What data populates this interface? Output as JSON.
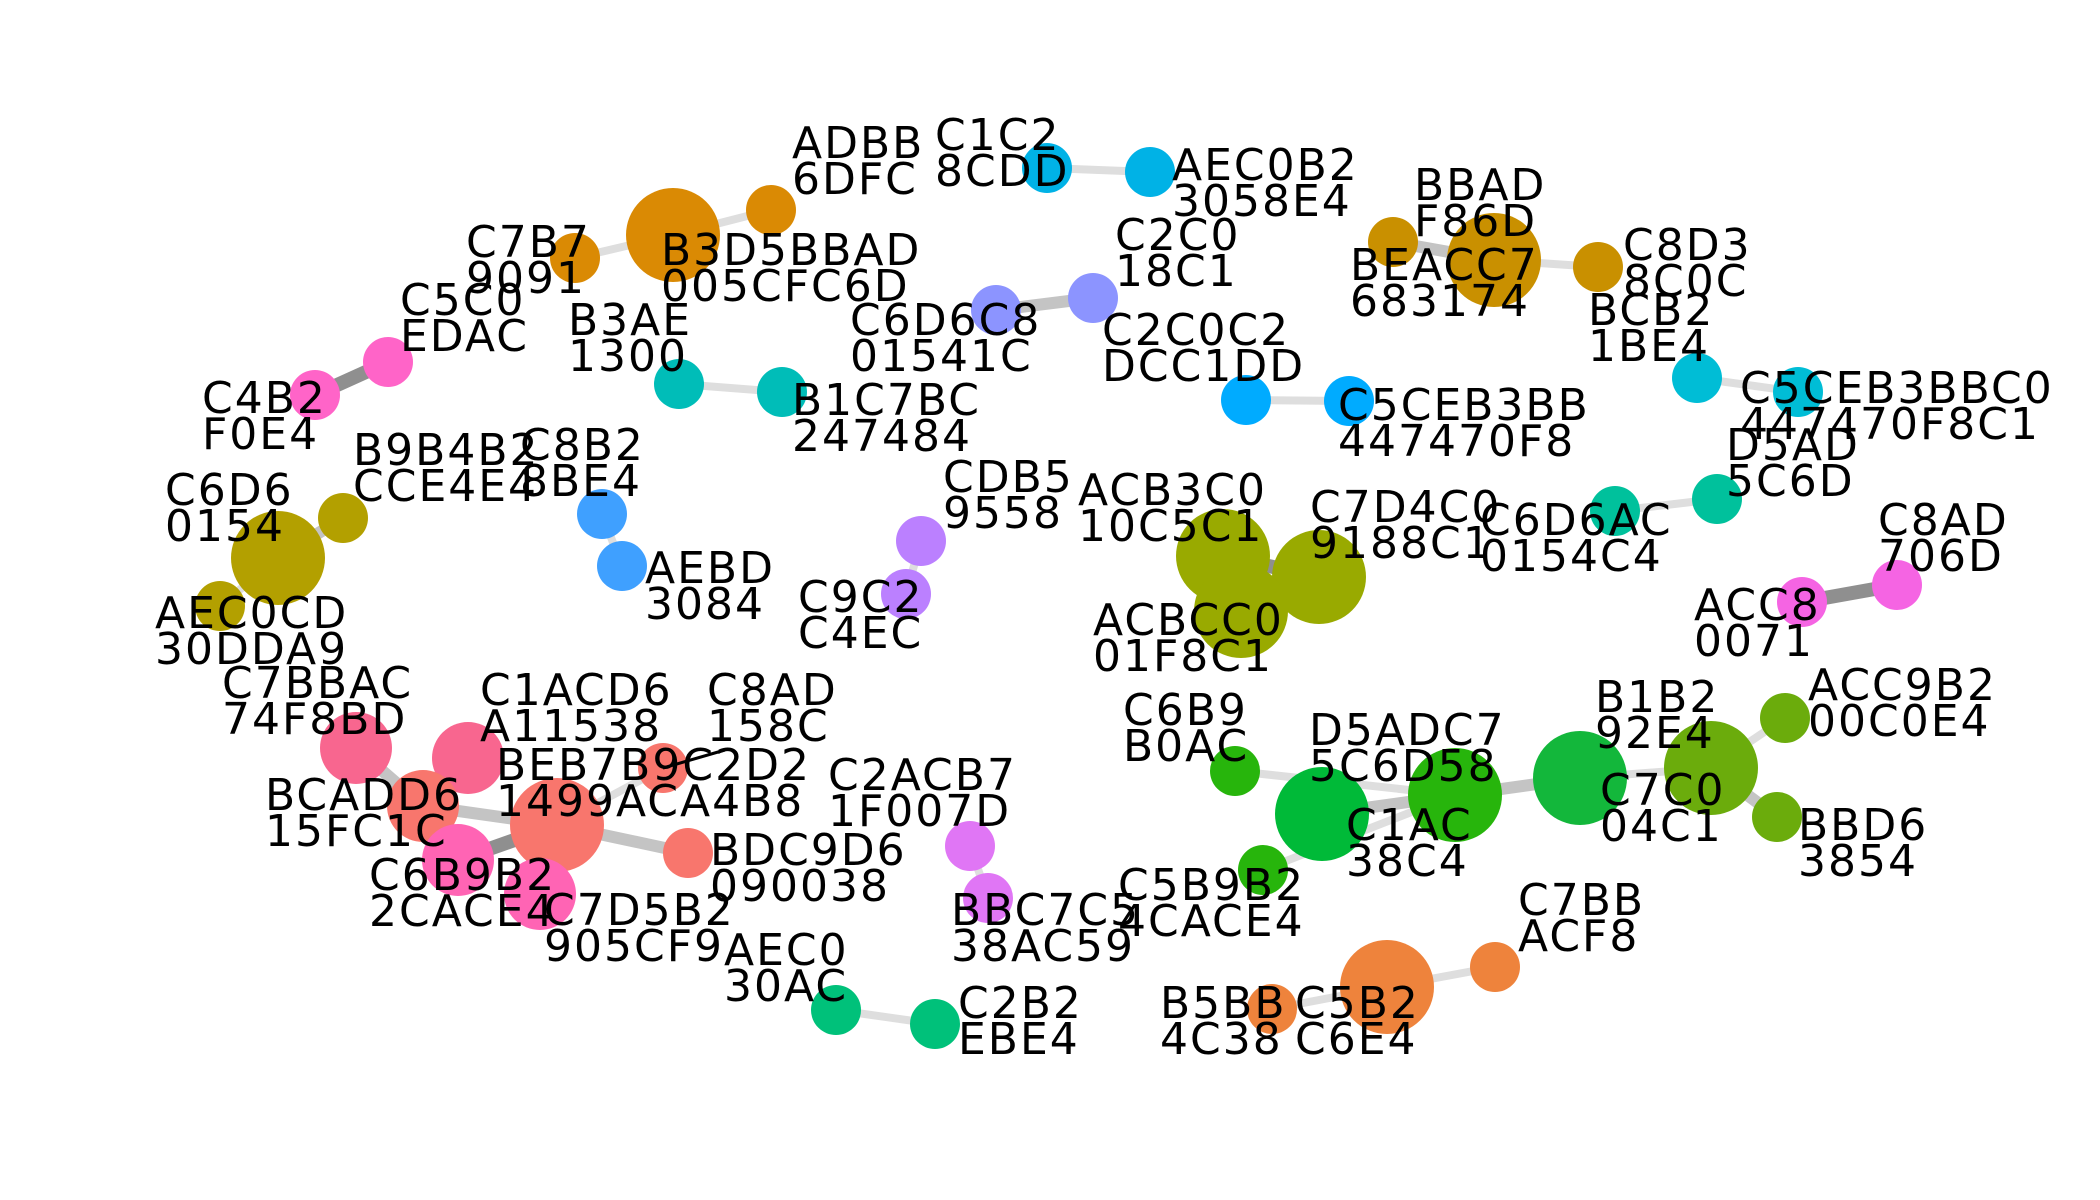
{
  "graph": {
    "type": "network",
    "nodes": [
      {
        "id": "n1",
        "label": "ADBB 6DFC",
        "color": "#DA8A04",
        "size": "small"
      },
      {
        "id": "n2",
        "label": "B3D5BBAD 005CFC6D",
        "color": "#DA8A04",
        "size": "large"
      },
      {
        "id": "n3",
        "label": "C7B7 9091",
        "color": "#DA8A04",
        "size": "small"
      },
      {
        "id": "n4",
        "label": "C5C0 EDAC",
        "color": "#FF64C8",
        "size": "small"
      },
      {
        "id": "n5",
        "label": "C4B2 F0E4",
        "color": "#FF64C8",
        "size": "small"
      },
      {
        "id": "n6",
        "label": "C1C2 8CDD",
        "color": "#00B2E6",
        "size": "small"
      },
      {
        "id": "n7",
        "label": "AEC0B2 3058E4",
        "color": "#00B2E6",
        "size": "small"
      },
      {
        "id": "n8",
        "label": "B3AE 1300",
        "color": "#00BDB8",
        "size": "small"
      },
      {
        "id": "n9",
        "label": "B1C7BC 247484",
        "color": "#00BDB8",
        "size": "small"
      },
      {
        "id": "n10",
        "label": "C6D6C8 01541C",
        "color": "#8C94FF",
        "size": "small"
      },
      {
        "id": "n11",
        "label": "C2C0 18C1",
        "color": "#8C94FF",
        "size": "small"
      },
      {
        "id": "n12",
        "label": "C2C0C2 DCC1DD",
        "color": "#00ABFF",
        "size": "small"
      },
      {
        "id": "n13",
        "label": "C5CEB3BB 447470F8",
        "color": "#00ABFF",
        "size": "small"
      },
      {
        "id": "n14",
        "label": "BBAD F86D",
        "color": "#C99000",
        "size": "small"
      },
      {
        "id": "n15",
        "label": "BEACC7 683174",
        "color": "#C99000",
        "size": "large"
      },
      {
        "id": "n16",
        "label": "C8D3 8C0C",
        "color": "#C99000",
        "size": "small"
      },
      {
        "id": "n17",
        "label": "BCB2 1BE4",
        "color": "#00BDD6",
        "size": "small"
      },
      {
        "id": "n18",
        "label": "C5CEB3BBC0 447470F8C1",
        "color": "#00BDD6",
        "size": "small"
      },
      {
        "id": "n19",
        "label": "C6D6 0154",
        "color": "#B3A000",
        "size": "large"
      },
      {
        "id": "n20",
        "label": "B9B4B2 CCE4E4",
        "color": "#B3A000",
        "size": "small"
      },
      {
        "id": "n21",
        "label": "AEC0CD 30DDA9",
        "color": "#B3A000",
        "size": "small"
      },
      {
        "id": "n22",
        "label": "C8B2 8BE4",
        "color": "#3FA0FF",
        "size": "small"
      },
      {
        "id": "n23",
        "label": "AEBD 3084",
        "color": "#3FA0FF",
        "size": "small"
      },
      {
        "id": "n24",
        "label": "CDB5 9558",
        "color": "#BB80FF",
        "size": "small"
      },
      {
        "id": "n25",
        "label": "C9C2 C4EC",
        "color": "#BB80FF",
        "size": "small"
      },
      {
        "id": "n26",
        "label": "ACB3C0 10C5C1",
        "color": "#99AA00",
        "size": "large"
      },
      {
        "id": "n27",
        "label": "C7D4C0 9188C1",
        "color": "#99AA00",
        "size": "large"
      },
      {
        "id": "n28",
        "label": "ACBCC0 01F8C1",
        "color": "#99AA00",
        "size": "large"
      },
      {
        "id": "n29",
        "label": "D5AD 5C6D",
        "color": "#00C19C",
        "size": "small"
      },
      {
        "id": "n30",
        "label": "C6D6AC 0154C4",
        "color": "#00C19C",
        "size": "small"
      },
      {
        "id": "n31",
        "label": "C8AD 706D",
        "color": "#F564E3",
        "size": "small"
      },
      {
        "id": "n32",
        "label": "ACC8 0071",
        "color": "#F564E3",
        "size": "small"
      },
      {
        "id": "n33",
        "label": "C7BBAC 74F8BD",
        "color": "#F8668F",
        "size": "medium"
      },
      {
        "id": "n34",
        "label": "C1ACD6 A11538",
        "color": "#F8668F",
        "size": "medium"
      },
      {
        "id": "n35",
        "label": "C8AD 158C",
        "color": "#F8766D",
        "size": "small"
      },
      {
        "id": "n36",
        "label": "BEB7B9C2D2 1499ACA4B8",
        "color": "#F8766D",
        "size": "large"
      },
      {
        "id": "n37",
        "label": "BCADD6 15FC1C",
        "color": "#F8766D",
        "size": "medium"
      },
      {
        "id": "n38",
        "label": "BDC9D6 090038",
        "color": "#F8766D",
        "size": "small"
      },
      {
        "id": "n39",
        "label": "C6B9B2 2CACE4",
        "color": "#FF64B4",
        "size": "medium"
      },
      {
        "id": "n40",
        "label": "C7D5B2 905CF9",
        "color": "#FF64B4",
        "size": "medium"
      },
      {
        "id": "n41",
        "label": "C2ACB7 1F007D",
        "color": "#E076F5",
        "size": "small"
      },
      {
        "id": "n42",
        "label": "BBC7C5 38AC59",
        "color": "#E076F5",
        "size": "small"
      },
      {
        "id": "n43",
        "label": "AEC0 30AC",
        "color": "#00C17A",
        "size": "small"
      },
      {
        "id": "n44",
        "label": "C2B2 EBE4",
        "color": "#00C17A",
        "size": "small"
      },
      {
        "id": "n45",
        "label": "C6B9 B0AC",
        "color": "#27B50C",
        "size": "small"
      },
      {
        "id": "n46",
        "label": "D5ADC7 5C6D58",
        "color": "#00BA38",
        "size": "large"
      },
      {
        "id": "n47",
        "label": "C1AC 38C4",
        "color": "#27B50C",
        "size": "large"
      },
      {
        "id": "n48",
        "label": "C5B9B2 4CACE4",
        "color": "#27B50C",
        "size": "small"
      },
      {
        "id": "n49",
        "label": "B1B2 92E4",
        "color": "#13B73B",
        "size": "large"
      },
      {
        "id": "n50",
        "label": "C7C0 04C1",
        "color": "#6BAC0C",
        "size": "large"
      },
      {
        "id": "n51",
        "label": "ACC9B2 00C0E4",
        "color": "#6BAC0C",
        "size": "small"
      },
      {
        "id": "n52",
        "label": "BBD6 3854",
        "color": "#6BAC0C",
        "size": "small"
      },
      {
        "id": "n53",
        "label": "C7BB ACF8",
        "color": "#EE833C",
        "size": "small"
      },
      {
        "id": "n54",
        "label": "C5B2 C6E4",
        "color": "#EE833C",
        "size": "large"
      },
      {
        "id": "n55",
        "label": "B5BB 4C38",
        "color": "#EE833C",
        "size": "small"
      }
    ],
    "edges": [
      {
        "source": "n2",
        "target": "n1",
        "weight": "light"
      },
      {
        "source": "n3",
        "target": "n2",
        "weight": "light"
      },
      {
        "source": "n5",
        "target": "n4",
        "weight": "heavy"
      },
      {
        "source": "n6",
        "target": "n7",
        "weight": "light"
      },
      {
        "source": "n8",
        "target": "n9",
        "weight": "light"
      },
      {
        "source": "n10",
        "target": "n11",
        "weight": "medium"
      },
      {
        "source": "n12",
        "target": "n13",
        "weight": "light"
      },
      {
        "source": "n14",
        "target": "n15",
        "weight": "medium"
      },
      {
        "source": "n15",
        "target": "n16",
        "weight": "light"
      },
      {
        "source": "n17",
        "target": "n18",
        "weight": "light"
      },
      {
        "source": "n19",
        "target": "n20",
        "weight": "medium"
      },
      {
        "source": "n19",
        "target": "n21",
        "weight": "light"
      },
      {
        "source": "n22",
        "target": "n23",
        "weight": "light"
      },
      {
        "source": "n24",
        "target": "n25",
        "weight": "light"
      },
      {
        "source": "n26",
        "target": "n27",
        "weight": "heavy"
      },
      {
        "source": "n26",
        "target": "n28",
        "weight": "medium"
      },
      {
        "source": "n30",
        "target": "n29",
        "weight": "light"
      },
      {
        "source": "n32",
        "target": "n31",
        "weight": "heavy"
      },
      {
        "source": "n33",
        "target": "n37",
        "weight": "medium"
      },
      {
        "source": "n34",
        "target": "n37",
        "weight": "medium"
      },
      {
        "source": "n37",
        "target": "n36",
        "weight": "medium"
      },
      {
        "source": "n37",
        "target": "n39",
        "weight": "medium"
      },
      {
        "source": "n39",
        "target": "n36",
        "weight": "heavy"
      },
      {
        "source": "n36",
        "target": "n40",
        "weight": "medium"
      },
      {
        "source": "n36",
        "target": "n38",
        "weight": "medium"
      },
      {
        "source": "n35",
        "target": "n36",
        "weight": "light"
      },
      {
        "source": "n41",
        "target": "n42",
        "weight": "light"
      },
      {
        "source": "n43",
        "target": "n44",
        "weight": "light"
      },
      {
        "source": "n45",
        "target": "n47",
        "weight": "light"
      },
      {
        "source": "n47",
        "target": "n48",
        "weight": "light"
      },
      {
        "source": "n47",
        "target": "n46",
        "weight": "light"
      },
      {
        "source": "n46",
        "target": "n49",
        "weight": "medium"
      },
      {
        "source": "n49",
        "target": "n50",
        "weight": "light"
      },
      {
        "source": "n50",
        "target": "n51",
        "weight": "light"
      },
      {
        "source": "n50",
        "target": "n52",
        "weight": "medium"
      },
      {
        "source": "n55",
        "target": "n54",
        "weight": "light"
      },
      {
        "source": "n54",
        "target": "n53",
        "weight": "light"
      }
    ]
  }
}
